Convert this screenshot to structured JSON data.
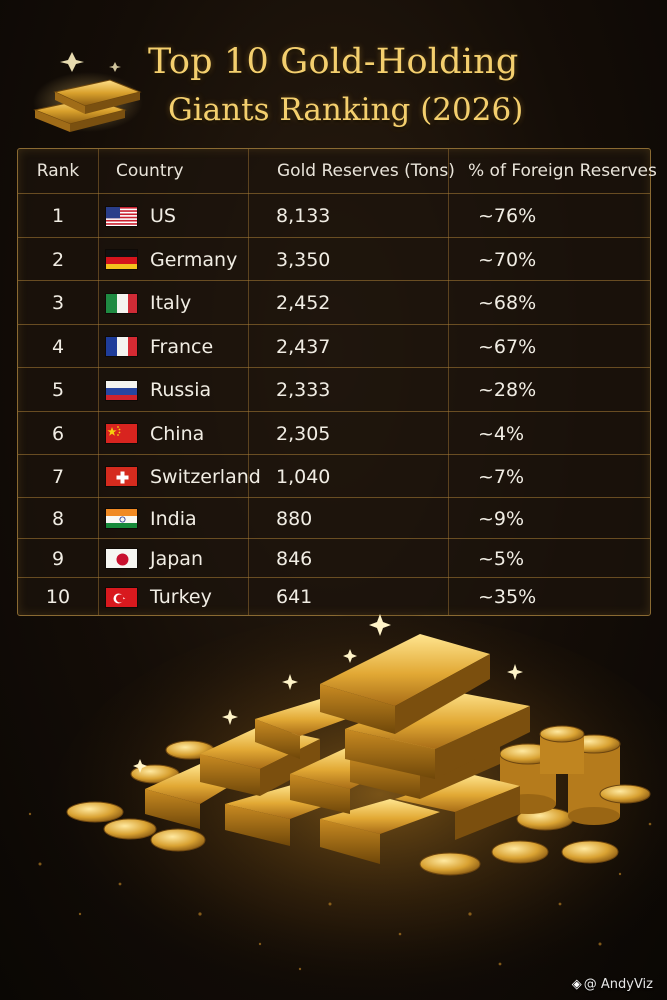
{
  "title": {
    "line1": "Top 10 Gold-Holding",
    "line2": "Giants Ranking (2026)"
  },
  "table": {
    "headers": [
      "Rank",
      "Country",
      "Gold Reserves (Tons)",
      "% of Foreign Reserves"
    ],
    "rows": [
      {
        "rank": "1",
        "country": "US",
        "flag": "us-flag",
        "gold": "8,133",
        "pct": "~76%"
      },
      {
        "rank": "2",
        "country": "Germany",
        "flag": "germany-flag",
        "gold": "3,350",
        "pct": "~70%"
      },
      {
        "rank": "3",
        "country": "Italy",
        "flag": "italy-flag",
        "gold": "2,452",
        "pct": "~68%"
      },
      {
        "rank": "4",
        "country": "France",
        "flag": "france-flag",
        "gold": "2,437",
        "pct": "~67%"
      },
      {
        "rank": "5",
        "country": "Russia",
        "flag": "russia-flag",
        "gold": "2,333",
        "pct": "~28%"
      },
      {
        "rank": "6",
        "country": "China",
        "flag": "china-flag",
        "gold": "2,305",
        "pct": "~4%"
      },
      {
        "rank": "7",
        "country": "Switzerland",
        "flag": "switzerland-flag",
        "gold": "1,040",
        "pct": "~7%"
      },
      {
        "rank": "8",
        "country": "India",
        "flag": "india-flag",
        "gold": "880",
        "pct": "~9%"
      },
      {
        "rank": "9",
        "country": "Japan",
        "flag": "japan-flag",
        "gold": "846",
        "pct": "~5%"
      },
      {
        "rank": "10",
        "country": "Turkey",
        "flag": "turkey-flag",
        "gold": "641",
        "pct": "~35%"
      }
    ]
  },
  "chart_data": {
    "type": "table",
    "title": "Top 10 Gold-Holding Giants Ranking (2026)",
    "columns": [
      "Rank",
      "Country",
      "Gold Reserves (Tons)",
      "% of Foreign Reserves"
    ],
    "categories": [
      "US",
      "Germany",
      "Italy",
      "France",
      "Russia",
      "China",
      "Switzerland",
      "India",
      "Japan",
      "Turkey"
    ],
    "series": [
      {
        "name": "Gold Reserves (Tons)",
        "values": [
          8133,
          3350,
          2452,
          2437,
          2333,
          2305,
          1040,
          880,
          846,
          641
        ]
      },
      {
        "name": "% of Foreign Reserves",
        "values": [
          76,
          70,
          68,
          67,
          28,
          4,
          7,
          9,
          5,
          35
        ]
      }
    ]
  },
  "colors": {
    "title_gold": "#f4cf6e",
    "border_gold": "#8a6a32",
    "text": "#f1ede4"
  },
  "watermark": "@ AndyViz"
}
